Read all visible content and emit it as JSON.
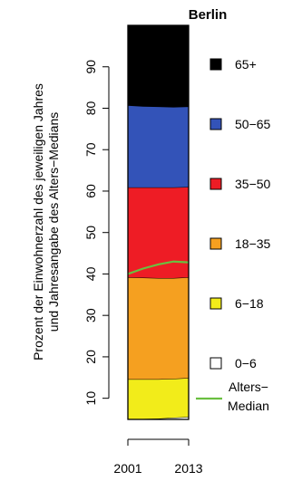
{
  "chart_data": {
    "type": "area",
    "title": "Berlin",
    "ylabel_line1": "Prozent der Einwohnerzahl des jeweiligen Jahres",
    "ylabel_line2": "und Jahresangabe des Alters−Medians",
    "x": [
      2001,
      2004,
      2007,
      2010,
      2013
    ],
    "xticks": [
      "2001",
      "2013"
    ],
    "ylim": [
      0,
      100
    ],
    "yticks": [
      10,
      20,
      30,
      40,
      50,
      60,
      70,
      80,
      90
    ],
    "series": [
      {
        "name": "0−6",
        "color": "#ffffff",
        "values": [
          5.0,
          5.0,
          5.1,
          5.3,
          5.5
        ]
      },
      {
        "name": "6−18",
        "color": "#f2ec1a",
        "values": [
          9.6,
          9.6,
          9.5,
          9.4,
          9.4
        ]
      },
      {
        "name": "18−35",
        "color": "#f5a020",
        "values": [
          24.6,
          24.5,
          24.4,
          24.3,
          24.3
        ]
      },
      {
        "name": "35−50",
        "color": "#ee1c25",
        "values": [
          21.7,
          21.8,
          21.9,
          21.9,
          21.8
        ]
      },
      {
        "name": "50−65",
        "color": "#3353b8",
        "values": [
          19.8,
          19.6,
          19.5,
          19.4,
          19.4
        ]
      },
      {
        "name": "65+",
        "color": "#000000",
        "values": [
          19.3,
          19.5,
          19.6,
          19.7,
          19.6
        ]
      }
    ],
    "median": {
      "name_line1": "Alters−",
      "name_line2": "Median",
      "color": "#6abf40",
      "values": [
        40.0,
        41.3,
        42.3,
        43.0,
        42.8
      ]
    },
    "legend_position": "right"
  }
}
